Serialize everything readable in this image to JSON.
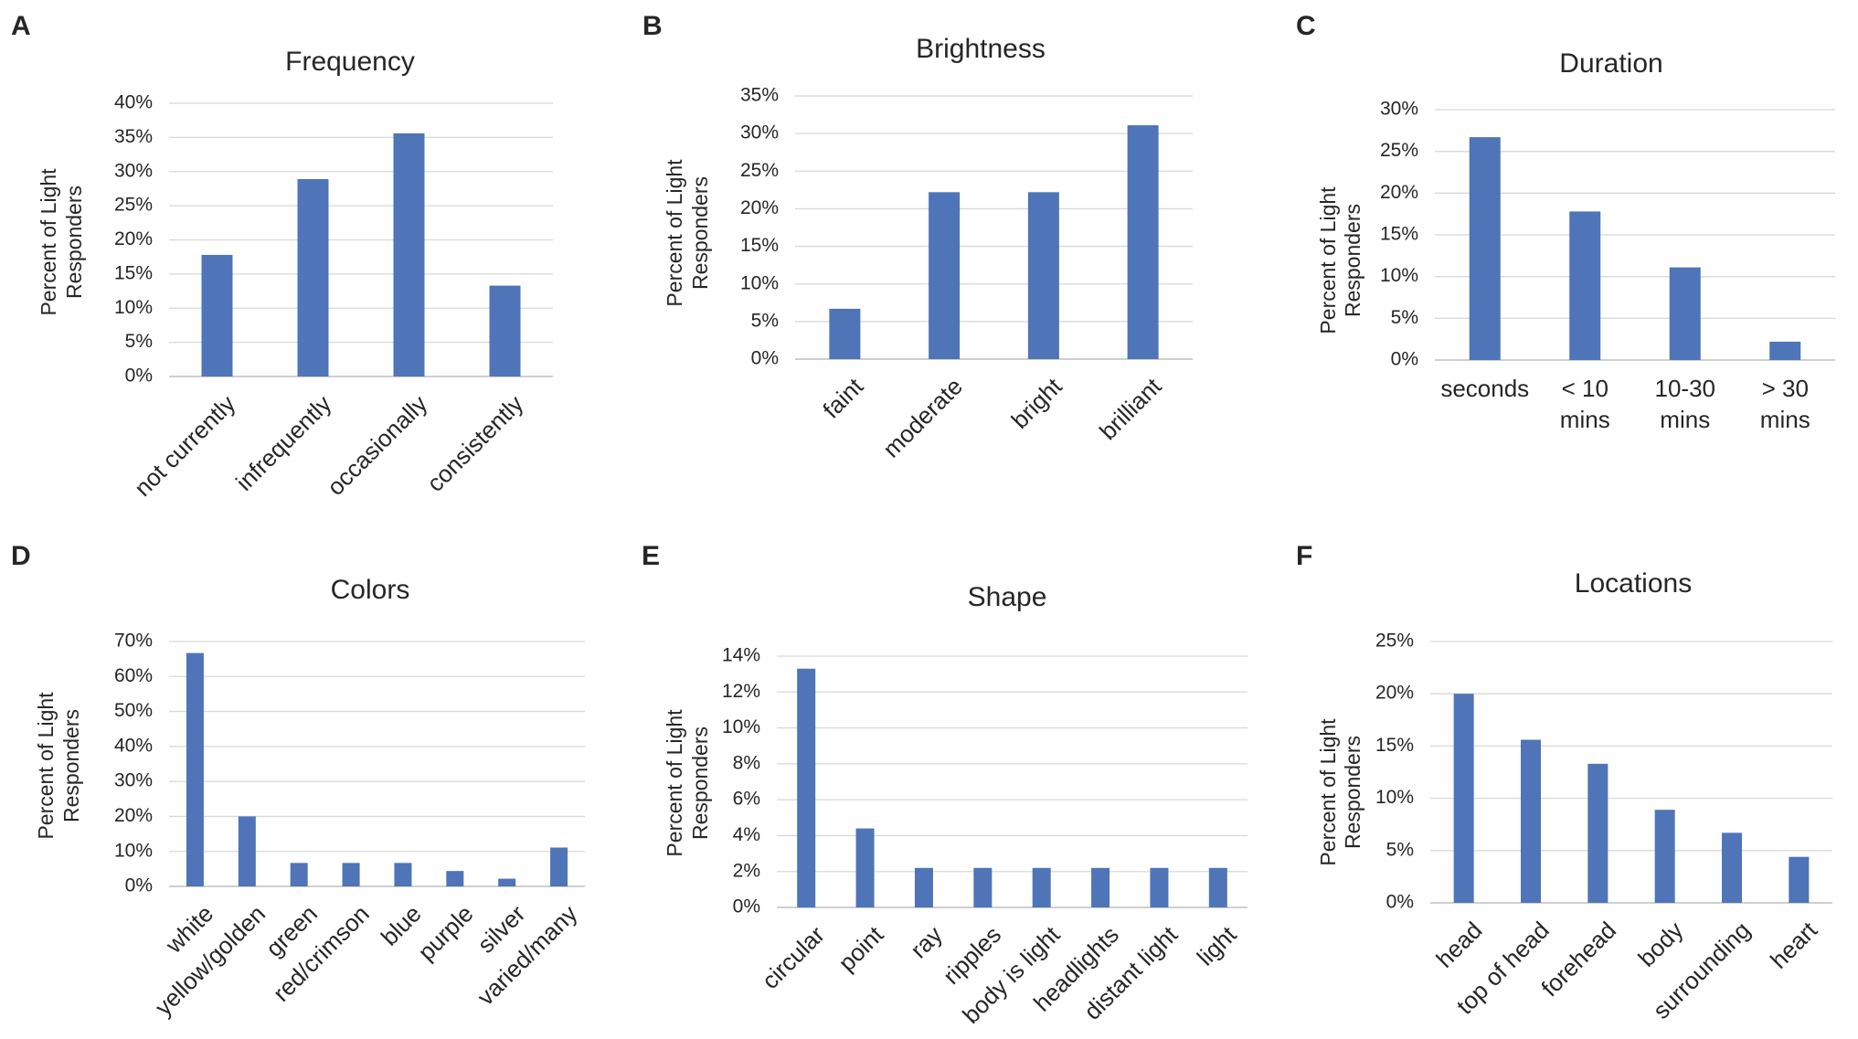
{
  "colors": {
    "bar": "#4f74b8",
    "grid": "#d9d9d9",
    "text": "#262626"
  },
  "chart_data": [
    {
      "panel": "A",
      "type": "bar",
      "title": "Frequency",
      "ylabel": [
        "Percent of Light",
        "Responders"
      ],
      "categories": [
        "not currently",
        "infrequently",
        "occasionally",
        "consistently"
      ],
      "values": [
        17.8,
        28.9,
        35.6,
        13.3
      ],
      "ylim": [
        0,
        40
      ],
      "yticks": [
        "0%",
        "5%",
        "10%",
        "15%",
        "20%",
        "25%",
        "30%",
        "35%",
        "40%"
      ],
      "label_style": "rotated",
      "grid": true
    },
    {
      "panel": "B",
      "type": "bar",
      "title": "Brightness",
      "ylabel": [
        "Percent of Light",
        "Responders"
      ],
      "categories": [
        "faint",
        "moderate",
        "bright",
        "brilliant"
      ],
      "values": [
        6.7,
        22.2,
        22.2,
        31.1
      ],
      "ylim": [
        0,
        35
      ],
      "yticks": [
        "0%",
        "5%",
        "10%",
        "15%",
        "20%",
        "25%",
        "30%",
        "35%"
      ],
      "label_style": "rotated",
      "grid": true
    },
    {
      "panel": "C",
      "type": "bar",
      "title": "Duration",
      "ylabel": [
        "Percent of Light",
        "Responders"
      ],
      "categories": [
        [
          "seconds"
        ],
        [
          "< 10",
          "mins"
        ],
        [
          "10-30",
          "mins"
        ],
        [
          "> 30",
          "mins"
        ]
      ],
      "values": [
        26.7,
        17.8,
        11.1,
        2.2
      ],
      "ylim": [
        0,
        30
      ],
      "yticks": [
        "0%",
        "5%",
        "10%",
        "15%",
        "20%",
        "25%",
        "30%"
      ],
      "label_style": "horizontal",
      "grid": true
    },
    {
      "panel": "D",
      "type": "bar",
      "title": "Colors",
      "ylabel": [
        "Percent of Light",
        "Responders"
      ],
      "categories": [
        "white",
        "yellow/golden",
        "green",
        "red/crimson",
        "blue",
        "purple",
        "silver",
        "varied/many"
      ],
      "values": [
        66.7,
        20.0,
        6.7,
        6.7,
        6.7,
        4.4,
        2.2,
        11.1
      ],
      "ylim": [
        0,
        70
      ],
      "yticks": [
        "0%",
        "10%",
        "20%",
        "30%",
        "40%",
        "50%",
        "60%",
        "70%"
      ],
      "label_style": "rotated",
      "grid": true
    },
    {
      "panel": "E",
      "type": "bar",
      "title": "Shape",
      "ylabel": [
        "Percent of Light",
        "Responders"
      ],
      "categories": [
        "circular",
        "point",
        "ray",
        "ripples",
        "body is light",
        "headlights",
        "distant light",
        "light"
      ],
      "values": [
        13.3,
        4.4,
        2.2,
        2.2,
        2.2,
        2.2,
        2.2,
        2.2
      ],
      "ylim": [
        0,
        14
      ],
      "yticks": [
        "0%",
        "2%",
        "4%",
        "6%",
        "8%",
        "10%",
        "12%",
        "14%"
      ],
      "label_style": "rotated",
      "grid": true
    },
    {
      "panel": "F",
      "type": "bar",
      "title": "Locations",
      "ylabel": [
        "Percent of Light",
        "Responders"
      ],
      "categories": [
        "head",
        "top of head",
        "forehead",
        "body",
        "surrounding",
        "heart"
      ],
      "values": [
        20.0,
        15.6,
        13.3,
        8.9,
        6.7,
        4.4
      ],
      "ylim": [
        0,
        25
      ],
      "yticks": [
        "0%",
        "5%",
        "10%",
        "15%",
        "20%",
        "25%"
      ],
      "label_style": "rotated",
      "grid": true
    }
  ]
}
